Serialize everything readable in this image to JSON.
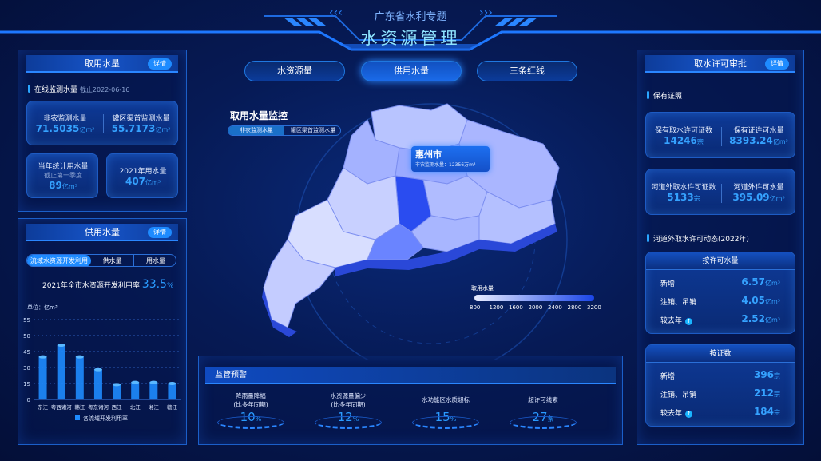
{
  "header": {
    "subtitle": "广东省水利专题",
    "title": "水资源管理"
  },
  "nav": [
    {
      "label": "水资源量",
      "active": false
    },
    {
      "label": "供用水量",
      "active": true
    },
    {
      "label": "三条红线",
      "active": false
    }
  ],
  "left_top": {
    "title": "取用水量",
    "detail": "详情",
    "section": "在线监测水量",
    "date": "截止2022-06-16",
    "card1": [
      {
        "label": "非农监测水量",
        "value": "71.5035",
        "unit": "亿m³"
      },
      {
        "label": "罐区渠首监测水量",
        "value": "55.7173",
        "unit": "亿m³"
      }
    ],
    "card2": {
      "label": "当年统计用水量",
      "note": "截止第一季度",
      "value": "89",
      "unit": "亿m³"
    },
    "card3": {
      "label": "2021年用水量",
      "value": "407",
      "unit": "亿m³"
    }
  },
  "left_bottom": {
    "title": "供用水量",
    "detail": "详情",
    "tabs": [
      "流域水资源开发利用",
      "供水量",
      "用水量"
    ],
    "rate_label": "2021年全市水资源开发利用率",
    "rate_value": "33.5",
    "rate_unit": "%"
  },
  "chart_data": {
    "type": "bar",
    "ylabel": "单位：亿m³",
    "yticks": [
      0,
      15,
      30,
      45,
      50,
      55
    ],
    "categories": [
      "东江",
      "粤西诸河",
      "韩江",
      "粤东诸河",
      "西江",
      "北江",
      "湘江",
      "赣江"
    ],
    "series": [
      {
        "name": "各流域开发利用率",
        "values": [
          40,
          47,
          40,
          28,
          14,
          16,
          16,
          15
        ]
      }
    ],
    "color": "#1e8bff",
    "grid": true,
    "legend": "bottom"
  },
  "map": {
    "title": "取用水量监控",
    "toggle": [
      "非农监测水量",
      "罐区渠首监测水量"
    ],
    "tooltip": {
      "city": "惠州市",
      "label": "非农监测水量：",
      "value": "12356",
      "unit": "万m³"
    },
    "legend": {
      "title": "取用水量",
      "ticks": [
        "800",
        "1200",
        "1600",
        "2000",
        "2400",
        "2800",
        "3200"
      ],
      "colors": [
        "#e8ecff",
        "#1a45e8"
      ]
    }
  },
  "alerts": {
    "title": "监管预警",
    "items": [
      {
        "label": "降雨量降幅",
        "sub": "(比多年同期)",
        "value": "10",
        "unit": "%"
      },
      {
        "label": "水资源量偏少",
        "sub": "(比多年同期)",
        "value": "12",
        "unit": "%"
      },
      {
        "label": "水功能区水质超标",
        "sub": "",
        "value": "15",
        "unit": "%"
      },
      {
        "label": "超许可线索",
        "sub": "",
        "value": "27",
        "unit": "条"
      }
    ]
  },
  "right": {
    "title": "取水许可审批",
    "detail": "详情",
    "section1": "保有证照",
    "card1": [
      {
        "label": "保有取水许可证数",
        "value": "14246",
        "unit": "宗"
      },
      {
        "label": "保有证许可水量",
        "value": "8393.24",
        "unit": "亿m³"
      }
    ],
    "card2": [
      {
        "label": "河道外取水许可证数",
        "value": "5133",
        "unit": "宗"
      },
      {
        "label": "河道外许可水量",
        "value": "395.09",
        "unit": "亿m³"
      }
    ],
    "section2": "河道外取水许可动态(2022年)",
    "box1": {
      "title": "按许可水量",
      "rows": [
        {
          "label": "新增",
          "value": "6.57",
          "unit": "亿m³"
        },
        {
          "label": "注销、吊销",
          "value": "4.05",
          "unit": "亿m³"
        },
        {
          "label": "较去年",
          "value": "2.52",
          "unit": "亿m³",
          "up": true
        }
      ]
    },
    "box2": {
      "title": "按证数",
      "rows": [
        {
          "label": "新增",
          "value": "396",
          "unit": "宗"
        },
        {
          "label": "注销、吊销",
          "value": "212",
          "unit": "宗"
        },
        {
          "label": "较去年",
          "value": "184",
          "unit": "宗",
          "up": true
        }
      ]
    }
  }
}
